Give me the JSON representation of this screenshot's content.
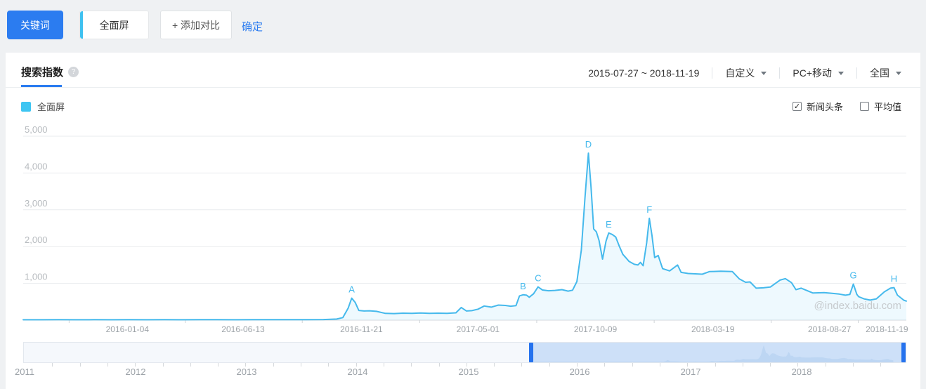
{
  "toolbar": {
    "keyword_label": "关键词",
    "term_tab": "全面屏",
    "add_compare": "+ 添加对比",
    "confirm": "确定"
  },
  "panel": {
    "tab": "搜索指数",
    "help": "?",
    "date_range": "2015-07-27 ~ 2018-11-19",
    "range_mode": "自定义",
    "platform": "PC+移动",
    "region": "全国",
    "legend": {
      "label": "全面屏",
      "color": "#3ec5f2"
    },
    "options": [
      {
        "label": "新闻头条",
        "checked": true
      },
      {
        "label": "平均值",
        "checked": false
      }
    ],
    "watermark": "@index.baidu.com"
  },
  "chart_data": {
    "type": "line",
    "series_name": "全面屏",
    "x_range": [
      "2015-07-27",
      "2018-11-19"
    ],
    "ylim": [
      0,
      5000
    ],
    "y_ticks": [
      {
        "value": 1000,
        "label": "1,000"
      },
      {
        "value": 2000,
        "label": "2,000"
      },
      {
        "value": 3000,
        "label": "3,000"
      },
      {
        "value": 4000,
        "label": "4,000"
      },
      {
        "value": 5000,
        "label": "5,000"
      }
    ],
    "x_ticks": [
      {
        "label": "2016-01-04",
        "f": 0.118
      },
      {
        "label": "2016-06-13",
        "f": 0.249
      },
      {
        "label": "2016-11-21",
        "f": 0.383
      },
      {
        "label": "2017-05-01",
        "f": 0.515
      },
      {
        "label": "2017-10-09",
        "f": 0.648
      },
      {
        "label": "2018-03-19",
        "f": 0.781
      },
      {
        "label": "2018-08-27",
        "f": 0.913
      },
      {
        "label": "2018-11-19",
        "f": 0.978
      }
    ],
    "x_tick_marks": [
      0.052,
      0.1835,
      0.316,
      0.449,
      0.5815,
      0.7145,
      0.847,
      0.9455
    ],
    "line_color": "#45b9ec",
    "fill_color": "rgba(63,193,240,0.09)",
    "grid": true,
    "points": [
      [
        0.0,
        12
      ],
      [
        0.02,
        12
      ],
      [
        0.04,
        14
      ],
      [
        0.06,
        12
      ],
      [
        0.08,
        13
      ],
      [
        0.1,
        12
      ],
      [
        0.12,
        14
      ],
      [
        0.14,
        12
      ],
      [
        0.16,
        13
      ],
      [
        0.18,
        12
      ],
      [
        0.2,
        14
      ],
      [
        0.22,
        13
      ],
      [
        0.24,
        12
      ],
      [
        0.26,
        14
      ],
      [
        0.28,
        13
      ],
      [
        0.3,
        14
      ],
      [
        0.32,
        15
      ],
      [
        0.34,
        18
      ],
      [
        0.355,
        30
      ],
      [
        0.362,
        70
      ],
      [
        0.368,
        330
      ],
      [
        0.372,
        600
      ],
      [
        0.376,
        480
      ],
      [
        0.38,
        265
      ],
      [
        0.386,
        250
      ],
      [
        0.392,
        255
      ],
      [
        0.4,
        240
      ],
      [
        0.41,
        185
      ],
      [
        0.42,
        180
      ],
      [
        0.43,
        190
      ],
      [
        0.44,
        185
      ],
      [
        0.45,
        195
      ],
      [
        0.46,
        185
      ],
      [
        0.47,
        190
      ],
      [
        0.48,
        185
      ],
      [
        0.49,
        200
      ],
      [
        0.496,
        345
      ],
      [
        0.502,
        250
      ],
      [
        0.508,
        260
      ],
      [
        0.515,
        300
      ],
      [
        0.522,
        385
      ],
      [
        0.53,
        355
      ],
      [
        0.538,
        410
      ],
      [
        0.546,
        400
      ],
      [
        0.552,
        380
      ],
      [
        0.558,
        395
      ],
      [
        0.562,
        660
      ],
      [
        0.566,
        690
      ],
      [
        0.57,
        680
      ],
      [
        0.573,
        625
      ],
      [
        0.578,
        720
      ],
      [
        0.583,
        905
      ],
      [
        0.588,
        820
      ],
      [
        0.595,
        800
      ],
      [
        0.602,
        810
      ],
      [
        0.61,
        830
      ],
      [
        0.617,
        790
      ],
      [
        0.622,
        815
      ],
      [
        0.627,
        1050
      ],
      [
        0.632,
        1900
      ],
      [
        0.636,
        3300
      ],
      [
        0.64,
        4540
      ],
      [
        0.643,
        3600
      ],
      [
        0.646,
        2480
      ],
      [
        0.649,
        2400
      ],
      [
        0.652,
        2170
      ],
      [
        0.656,
        1660
      ],
      [
        0.66,
        2150
      ],
      [
        0.663,
        2370
      ],
      [
        0.667,
        2330
      ],
      [
        0.671,
        2260
      ],
      [
        0.675,
        2010
      ],
      [
        0.679,
        1790
      ],
      [
        0.686,
        1600
      ],
      [
        0.692,
        1520
      ],
      [
        0.696,
        1500
      ],
      [
        0.699,
        1570
      ],
      [
        0.702,
        1480
      ],
      [
        0.706,
        2100
      ],
      [
        0.709,
        2770
      ],
      [
        0.712,
        2300
      ],
      [
        0.715,
        1700
      ],
      [
        0.719,
        1760
      ],
      [
        0.724,
        1400
      ],
      [
        0.732,
        1340
      ],
      [
        0.741,
        1500
      ],
      [
        0.745,
        1300
      ],
      [
        0.753,
        1270
      ],
      [
        0.761,
        1260
      ],
      [
        0.769,
        1250
      ],
      [
        0.777,
        1320
      ],
      [
        0.79,
        1330
      ],
      [
        0.803,
        1320
      ],
      [
        0.811,
        1120
      ],
      [
        0.818,
        1030
      ],
      [
        0.823,
        1040
      ],
      [
        0.83,
        870
      ],
      [
        0.838,
        880
      ],
      [
        0.846,
        900
      ],
      [
        0.857,
        1090
      ],
      [
        0.863,
        1130
      ],
      [
        0.87,
        1020
      ],
      [
        0.875,
        830
      ],
      [
        0.881,
        870
      ],
      [
        0.887,
        810
      ],
      [
        0.894,
        740
      ],
      [
        0.907,
        750
      ],
      [
        0.916,
        730
      ],
      [
        0.924,
        710
      ],
      [
        0.931,
        680
      ],
      [
        0.936,
        700
      ],
      [
        0.94,
        980
      ],
      [
        0.944,
        700
      ],
      [
        0.946,
        640
      ],
      [
        0.952,
        580
      ],
      [
        0.959,
        545
      ],
      [
        0.966,
        580
      ],
      [
        0.975,
        770
      ],
      [
        0.982,
        870
      ],
      [
        0.986,
        885
      ],
      [
        0.99,
        680
      ],
      [
        0.997,
        545
      ],
      [
        1.0,
        520
      ]
    ],
    "annotations": [
      {
        "label": "A",
        "f": 0.372,
        "v": 600
      },
      {
        "label": "B",
        "f": 0.566,
        "v": 690
      },
      {
        "label": "C",
        "f": 0.583,
        "v": 905
      },
      {
        "label": "D",
        "f": 0.64,
        "v": 4540
      },
      {
        "label": "E",
        "f": 0.663,
        "v": 2370
      },
      {
        "label": "F",
        "f": 0.709,
        "v": 2770
      },
      {
        "label": "G",
        "f": 0.94,
        "v": 980
      },
      {
        "label": "H",
        "f": 0.986,
        "v": 885
      }
    ]
  },
  "slider": {
    "years": [
      {
        "label": "2011",
        "f": 0.0016
      },
      {
        "label": "2012",
        "f": 0.1273
      },
      {
        "label": "2013",
        "f": 0.253
      },
      {
        "label": "2014",
        "f": 0.3787
      },
      {
        "label": "2015",
        "f": 0.5044
      },
      {
        "label": "2016",
        "f": 0.6301
      },
      {
        "label": "2017",
        "f": 0.7558
      },
      {
        "label": "2018",
        "f": 0.8815
      }
    ],
    "selection": {
      "start_f": 0.575,
      "end_f": 0.998
    },
    "mini": {
      "offset_f": 0.578,
      "span_f": 0.408
    },
    "colors": {
      "selection": "#cde0f8",
      "handle": "#2572ee",
      "silhouette": "#b9d3f1"
    }
  }
}
